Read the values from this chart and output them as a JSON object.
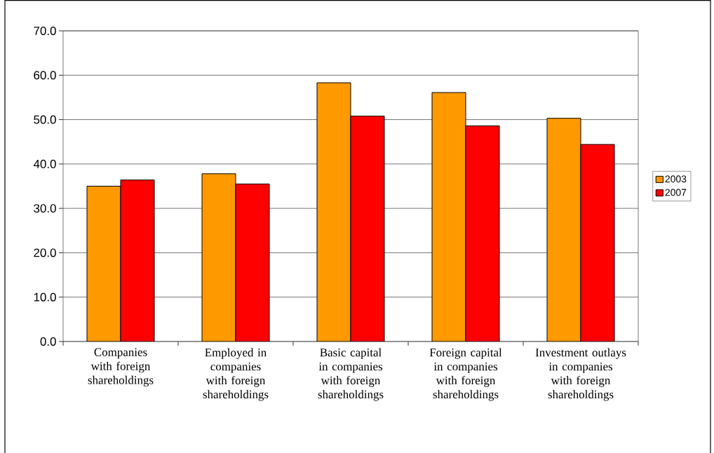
{
  "chart_data": {
    "type": "bar",
    "categories": [
      "Companies with foreign shareholdings",
      "Employed in companies with foreign shareholdings",
      "Basic capital in companies with foreign shareholdings",
      "Foreign capital in companies with foreign shareholdings",
      "Investment outlays in companies with foreign shareholdings"
    ],
    "series": [
      {
        "name": "2003",
        "color": "#ff9900",
        "values": [
          35.0,
          37.8,
          58.3,
          56.1,
          50.3
        ]
      },
      {
        "name": "2007",
        "color": "#ff0000",
        "values": [
          36.4,
          35.5,
          50.8,
          48.6,
          44.4
        ]
      }
    ],
    "ylim": [
      0,
      70
    ],
    "yticks": [
      {
        "value": 0,
        "label": "0.0"
      },
      {
        "value": 10,
        "label": "10.0"
      },
      {
        "value": 20,
        "label": "20.0"
      },
      {
        "value": 30,
        "label": "30.0"
      },
      {
        "value": 40,
        "label": "40.0"
      },
      {
        "value": 50,
        "label": "50.0"
      },
      {
        "value": 60,
        "label": "60.0"
      },
      {
        "value": 70,
        "label": "70.0"
      }
    ],
    "grid": "y",
    "legend": "right"
  }
}
